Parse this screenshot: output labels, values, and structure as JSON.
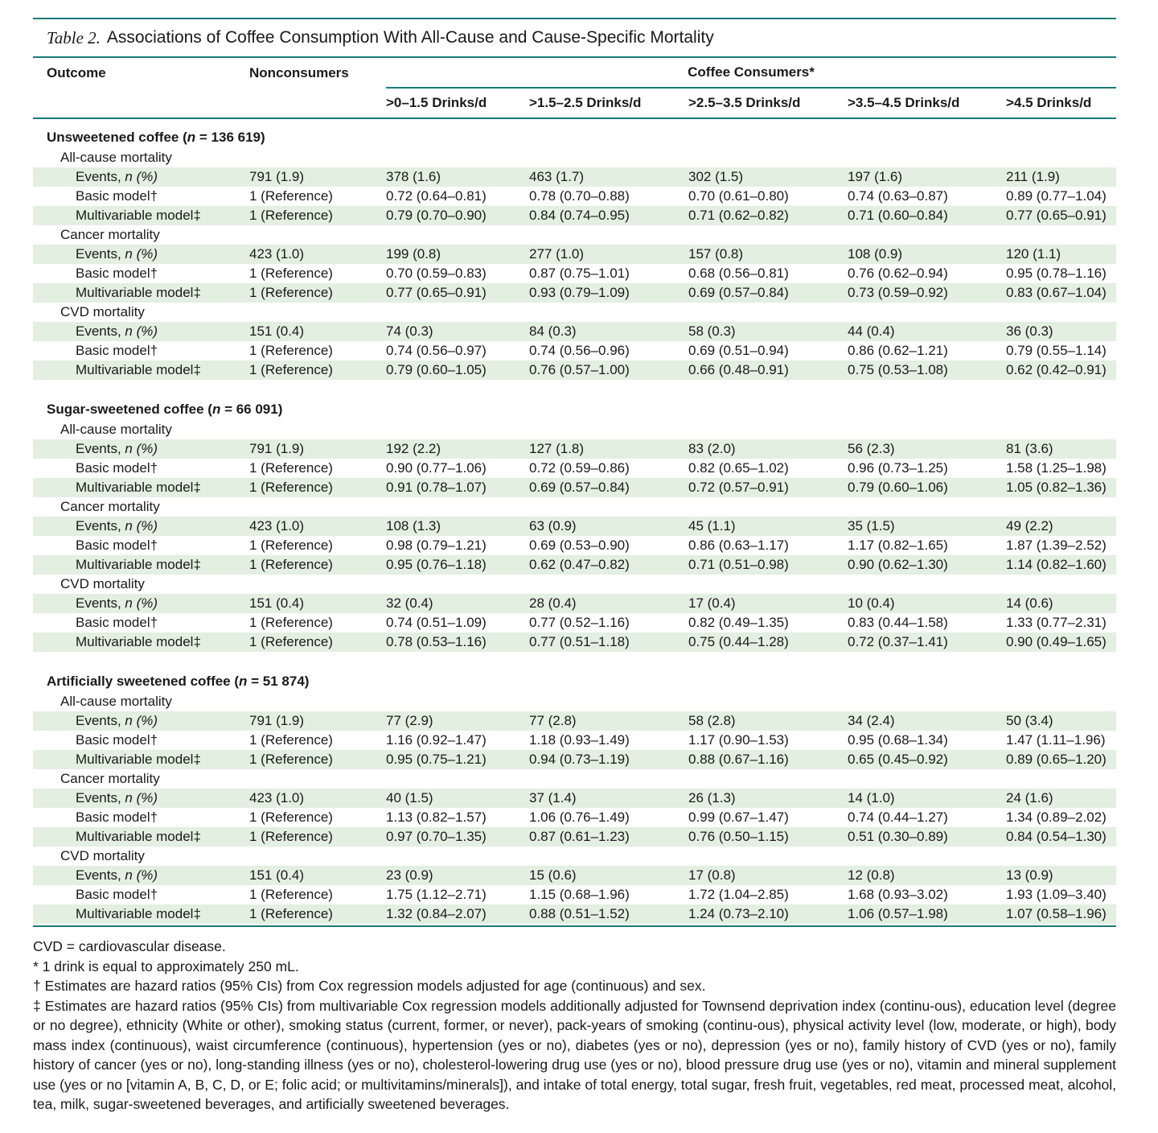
{
  "table": {
    "label": "Table 2.",
    "title": "Associations of Coffee Consumption With All-Cause and Cause-Specific Mortality",
    "headers": {
      "outcome": "Outcome",
      "nonconsumers": "Nonconsumers",
      "consumers": "Coffee Consumers*",
      "columns": [
        ">0–1.5 Drinks/d",
        ">1.5–2.5 Drinks/d",
        ">2.5–3.5 Drinks/d",
        ">3.5–4.5 Drinks/d",
        ">4.5 Drinks/d"
      ]
    },
    "sections": [
      {
        "name_prefix": "Unsweetened coffee (",
        "n_label": "n",
        "name_suffix": " = 136 619)",
        "groups": [
          {
            "name": "All-cause mortality",
            "rows": [
              {
                "label_prefix": "Events, ",
                "label_italic": "n (%)",
                "label_suffix": "",
                "values": [
                  "791 (1.9)",
                  "378 (1.6)",
                  "463 (1.7)",
                  "302 (1.5)",
                  "197 (1.6)",
                  "211 (1.9)"
                ]
              },
              {
                "label_prefix": "Basic model†",
                "label_italic": "",
                "label_suffix": "",
                "values": [
                  "1 (Reference)",
                  "0.72 (0.64–0.81)",
                  "0.78 (0.70–0.88)",
                  "0.70 (0.61–0.80)",
                  "0.74 (0.63–0.87)",
                  "0.89 (0.77–1.04)"
                ]
              },
              {
                "label_prefix": "Multivariable model‡",
                "label_italic": "",
                "label_suffix": "",
                "values": [
                  "1 (Reference)",
                  "0.79 (0.70–0.90)",
                  "0.84 (0.74–0.95)",
                  "0.71 (0.62–0.82)",
                  "0.71 (0.60–0.84)",
                  "0.77 (0.65–0.91)"
                ]
              }
            ]
          },
          {
            "name": "Cancer mortality",
            "rows": [
              {
                "label_prefix": "Events, ",
                "label_italic": "n (%)",
                "label_suffix": "",
                "values": [
                  "423 (1.0)",
                  "199 (0.8)",
                  "277 (1.0)",
                  "157 (0.8)",
                  "108 (0.9)",
                  "120 (1.1)"
                ]
              },
              {
                "label_prefix": "Basic model†",
                "label_italic": "",
                "label_suffix": "",
                "values": [
                  "1 (Reference)",
                  "0.70 (0.59–0.83)",
                  "0.87 (0.75–1.01)",
                  "0.68 (0.56–0.81)",
                  "0.76 (0.62–0.94)",
                  "0.95 (0.78–1.16)"
                ]
              },
              {
                "label_prefix": "Multivariable model‡",
                "label_italic": "",
                "label_suffix": "",
                "values": [
                  "1 (Reference)",
                  "0.77 (0.65–0.91)",
                  "0.93 (0.79–1.09)",
                  "0.69 (0.57–0.84)",
                  "0.73 (0.59–0.92)",
                  "0.83 (0.67–1.04)"
                ]
              }
            ]
          },
          {
            "name": "CVD mortality",
            "rows": [
              {
                "label_prefix": "Events, ",
                "label_italic": "n (%)",
                "label_suffix": "",
                "values": [
                  "151 (0.4)",
                  "74 (0.3)",
                  "84 (0.3)",
                  "58 (0.3)",
                  "44 (0.4)",
                  "36 (0.3)"
                ]
              },
              {
                "label_prefix": "Basic model†",
                "label_italic": "",
                "label_suffix": "",
                "values": [
                  "1 (Reference)",
                  "0.74 (0.56–0.97)",
                  "0.74 (0.56–0.96)",
                  "0.69 (0.51–0.94)",
                  "0.86 (0.62–1.21)",
                  "0.79 (0.55–1.14)"
                ]
              },
              {
                "label_prefix": "Multivariable model‡",
                "label_italic": "",
                "label_suffix": "",
                "values": [
                  "1 (Reference)",
                  "0.79 (0.60–1.05)",
                  "0.76 (0.57–1.00)",
                  "0.66 (0.48–0.91)",
                  "0.75 (0.53–1.08)",
                  "0.62 (0.42–0.91)"
                ]
              }
            ]
          }
        ]
      },
      {
        "name_prefix": "Sugar-sweetened coffee (",
        "n_label": "n",
        "name_suffix": " = 66 091)",
        "groups": [
          {
            "name": "All-cause mortality",
            "rows": [
              {
                "label_prefix": "Events, ",
                "label_italic": "n (%)",
                "label_suffix": "",
                "values": [
                  "791 (1.9)",
                  "192 (2.2)",
                  "127 (1.8)",
                  "83 (2.0)",
                  "56 (2.3)",
                  "81 (3.6)"
                ]
              },
              {
                "label_prefix": "Basic model†",
                "label_italic": "",
                "label_suffix": "",
                "values": [
                  "1 (Reference)",
                  "0.90 (0.77–1.06)",
                  "0.72 (0.59–0.86)",
                  "0.82 (0.65–1.02)",
                  "0.96 (0.73–1.25)",
                  "1.58 (1.25–1.98)"
                ]
              },
              {
                "label_prefix": "Multivariable model‡",
                "label_italic": "",
                "label_suffix": "",
                "values": [
                  "1 (Reference)",
                  "0.91 (0.78–1.07)",
                  "0.69 (0.57–0.84)",
                  "0.72 (0.57–0.91)",
                  "0.79 (0.60–1.06)",
                  "1.05 (0.82–1.36)"
                ]
              }
            ]
          },
          {
            "name": "Cancer mortality",
            "rows": [
              {
                "label_prefix": "Events, ",
                "label_italic": "n (%)",
                "label_suffix": "",
                "values": [
                  "423 (1.0)",
                  "108 (1.3)",
                  "63 (0.9)",
                  "45 (1.1)",
                  "35 (1.5)",
                  "49 (2.2)"
                ]
              },
              {
                "label_prefix": "Basic model†",
                "label_italic": "",
                "label_suffix": "",
                "values": [
                  "1 (Reference)",
                  "0.98 (0.79–1.21)",
                  "0.69 (0.53–0.90)",
                  "0.86 (0.63–1.17)",
                  "1.17 (0.82–1.65)",
                  "1.87 (1.39–2.52)"
                ]
              },
              {
                "label_prefix": "Multivariable model‡",
                "label_italic": "",
                "label_suffix": "",
                "values": [
                  "1 (Reference)",
                  "0.95 (0.76–1.18)",
                  "0.62 (0.47–0.82)",
                  "0.71 (0.51–0.98)",
                  "0.90 (0.62–1.30)",
                  "1.14 (0.82–1.60)"
                ]
              }
            ]
          },
          {
            "name": "CVD mortality",
            "rows": [
              {
                "label_prefix": "Events, ",
                "label_italic": "n (%)",
                "label_suffix": "",
                "values": [
                  "151 (0.4)",
                  "32 (0.4)",
                  "28 (0.4)",
                  "17 (0.4)",
                  "10 (0.4)",
                  "14 (0.6)"
                ]
              },
              {
                "label_prefix": "Basic model†",
                "label_italic": "",
                "label_suffix": "",
                "values": [
                  "1 (Reference)",
                  "0.74 (0.51–1.09)",
                  "0.77 (0.52–1.16)",
                  "0.82 (0.49–1.35)",
                  "0.83 (0.44–1.58)",
                  "1.33 (0.77–2.31)"
                ]
              },
              {
                "label_prefix": "Multivariable model‡",
                "label_italic": "",
                "label_suffix": "",
                "values": [
                  "1 (Reference)",
                  "0.78 (0.53–1.16)",
                  "0.77 (0.51–1.18)",
                  "0.75 (0.44–1.28)",
                  "0.72 (0.37–1.41)",
                  "0.90 (0.49–1.65)"
                ]
              }
            ]
          }
        ]
      },
      {
        "name_prefix": "Artificially sweetened coffee (",
        "n_label": "n",
        "name_suffix": " = 51 874)",
        "groups": [
          {
            "name": "All-cause mortality",
            "rows": [
              {
                "label_prefix": "Events, ",
                "label_italic": "n (%)",
                "label_suffix": "",
                "values": [
                  "791 (1.9)",
                  "77 (2.9)",
                  "77 (2.8)",
                  "58 (2.8)",
                  "34 (2.4)",
                  "50 (3.4)"
                ]
              },
              {
                "label_prefix": "Basic model†",
                "label_italic": "",
                "label_suffix": "",
                "values": [
                  "1 (Reference)",
                  "1.16 (0.92–1.47)",
                  "1.18 (0.93–1.49)",
                  "1.17 (0.90–1.53)",
                  "0.95 (0.68–1.34)",
                  "1.47 (1.11–1.96)"
                ]
              },
              {
                "label_prefix": "Multivariable model‡",
                "label_italic": "",
                "label_suffix": "",
                "values": [
                  "1 (Reference)",
                  "0.95 (0.75–1.21)",
                  "0.94 (0.73–1.19)",
                  "0.88 (0.67–1.16)",
                  "0.65 (0.45–0.92)",
                  "0.89 (0.65–1.20)"
                ]
              }
            ]
          },
          {
            "name": "Cancer mortality",
            "rows": [
              {
                "label_prefix": "Events, ",
                "label_italic": "n (%)",
                "label_suffix": "",
                "values": [
                  "423 (1.0)",
                  "40 (1.5)",
                  "37 (1.4)",
                  "26 (1.3)",
                  "14 (1.0)",
                  "24 (1.6)"
                ]
              },
              {
                "label_prefix": "Basic model†",
                "label_italic": "",
                "label_suffix": "",
                "values": [
                  "1 (Reference)",
                  "1.13 (0.82–1.57)",
                  "1.06 (0.76–1.49)",
                  "0.99 (0.67–1.47)",
                  "0.74 (0.44–1.27)",
                  "1.34 (0.89–2.02)"
                ]
              },
              {
                "label_prefix": "Multivariable model‡",
                "label_italic": "",
                "label_suffix": "",
                "values": [
                  "1 (Reference)",
                  "0.97 (0.70–1.35)",
                  "0.87 (0.61–1.23)",
                  "0.76 (0.50–1.15)",
                  "0.51 (0.30–0.89)",
                  "0.84 (0.54–1.30)"
                ]
              }
            ]
          },
          {
            "name": "CVD mortality",
            "rows": [
              {
                "label_prefix": "Events, ",
                "label_italic": "n (%)",
                "label_suffix": "",
                "values": [
                  "151 (0.4)",
                  "23 (0.9)",
                  "15 (0.6)",
                  "17 (0.8)",
                  "12 (0.8)",
                  "13 (0.9)"
                ]
              },
              {
                "label_prefix": "Basic model†",
                "label_italic": "",
                "label_suffix": "",
                "values": [
                  "1 (Reference)",
                  "1.75 (1.12–2.71)",
                  "1.15 (0.68–1.96)",
                  "1.72 (1.04–2.85)",
                  "1.68 (0.93–3.02)",
                  "1.93 (1.09–3.40)"
                ]
              },
              {
                "label_prefix": "Multivariable model‡",
                "label_italic": "",
                "label_suffix": "",
                "values": [
                  "1 (Reference)",
                  "1.32 (0.84–2.07)",
                  "0.88 (0.51–1.52)",
                  "1.24 (0.73–2.10)",
                  "1.06 (0.57–1.98)",
                  "1.07 (0.58–1.96)"
                ]
              }
            ]
          }
        ]
      }
    ],
    "footnotes": [
      "CVD = cardiovascular disease.",
      "* 1 drink is equal to approximately 250 mL.",
      "† Estimates are hazard ratios (95% CIs) from Cox regression models adjusted for age (continuous) and sex.",
      "‡ Estimates are hazard ratios (95% CIs) from multivariable Cox regression models additionally adjusted for Townsend deprivation index (continu-ous), education level (degree or no degree), ethnicity (White or other), smoking status (current, former, or never), pack-years of smoking (continu-ous), physical activity level (low, moderate, or high), body mass index (continuous), waist circumference (continuous), hypertension (yes or no), diabetes (yes or no), depression (yes or no), family history of CVD (yes or no), family history of cancer (yes or no), long-standing illness (yes or no), cholesterol-lowering drug use (yes or no), blood pressure drug use (yes or no), vitamin and mineral supplement use (yes or no [vitamin A, B, C, D, or E; folic acid; or multivitamins/minerals]), and intake of total energy, total sugar, fresh fruit, vegetables, red meat, processed meat, alcohol, tea, milk, sugar-sweetened beverages, and artificially sweetened beverages."
    ],
    "colors": {
      "rule": "#1a7a78",
      "shade": "#e3efe1"
    }
  }
}
